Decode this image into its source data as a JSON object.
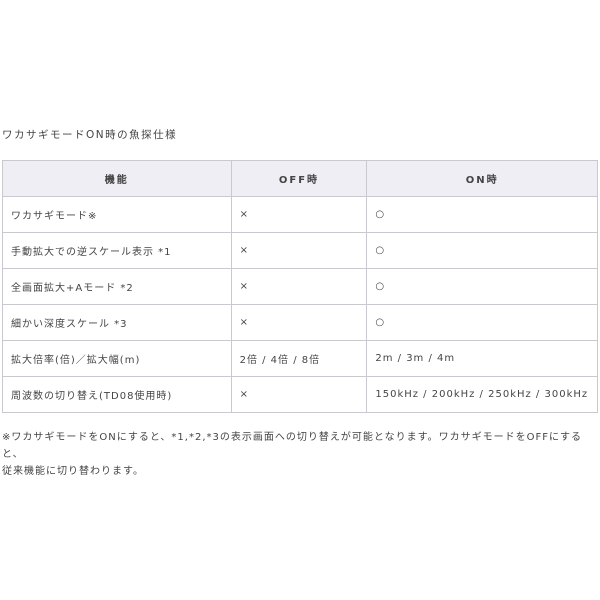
{
  "title": "ワカサギモードON時の魚探仕様",
  "table": {
    "headers": [
      "機能",
      "OFF時",
      "ON時"
    ],
    "rows": [
      [
        "ワカサギモード※",
        "×",
        "○"
      ],
      [
        "手動拡大での逆スケール表示 *1",
        "×",
        "○"
      ],
      [
        "全画面拡大+Aモード *2",
        "×",
        "○"
      ],
      [
        "細かい深度スケール *3",
        "×",
        "○"
      ],
      [
        "拡大倍率(倍)／拡大幅(m)",
        "2倍 / 4倍 / 8倍",
        "2m / 3m / 4m"
      ],
      [
        "周波数の切り替え(TD08使用時)",
        "×",
        "150kHz / 200kHz / 250kHz / 300kHz"
      ]
    ]
  },
  "note": {
    "line1": "※ワカサギモードをONにすると、*1,*2,*3の表示画面への切り替えが可能となります。ワカサギモードをOFFにすると、",
    "line2": "従来機能に切り替わります。"
  }
}
